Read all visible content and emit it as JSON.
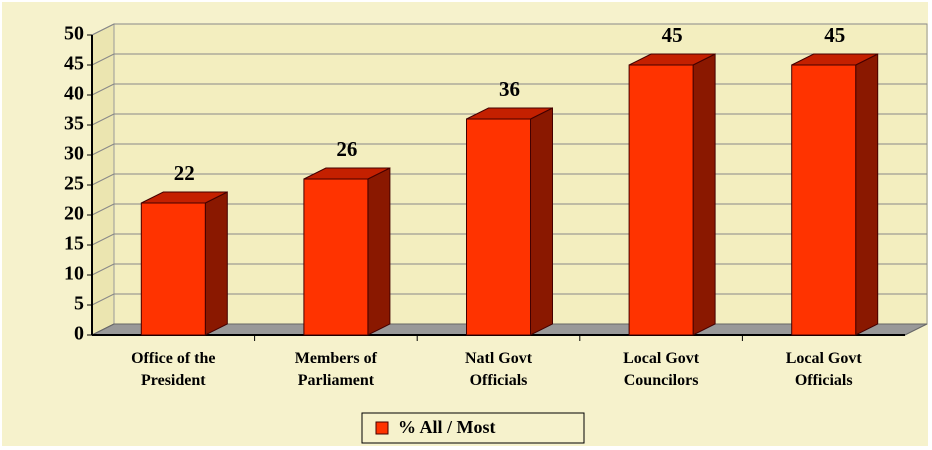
{
  "chart_data": {
    "type": "bar",
    "categories": [
      [
        "Office of the",
        "President"
      ],
      [
        "Members of",
        "Parliament"
      ],
      [
        "Natl Govt",
        "Officials"
      ],
      [
        "Local Govt",
        "Councilors"
      ],
      [
        "Local Govt",
        "Officials"
      ]
    ],
    "series": [
      {
        "name": "% All / Most",
        "color": "#ff3300",
        "values": [
          22,
          26,
          36,
          45,
          45
        ]
      }
    ],
    "ylim": [
      0,
      50
    ],
    "yticks": [
      0,
      5,
      10,
      15,
      20,
      25,
      30,
      35,
      40,
      45,
      50
    ],
    "grid": true,
    "legend": "bottom"
  }
}
